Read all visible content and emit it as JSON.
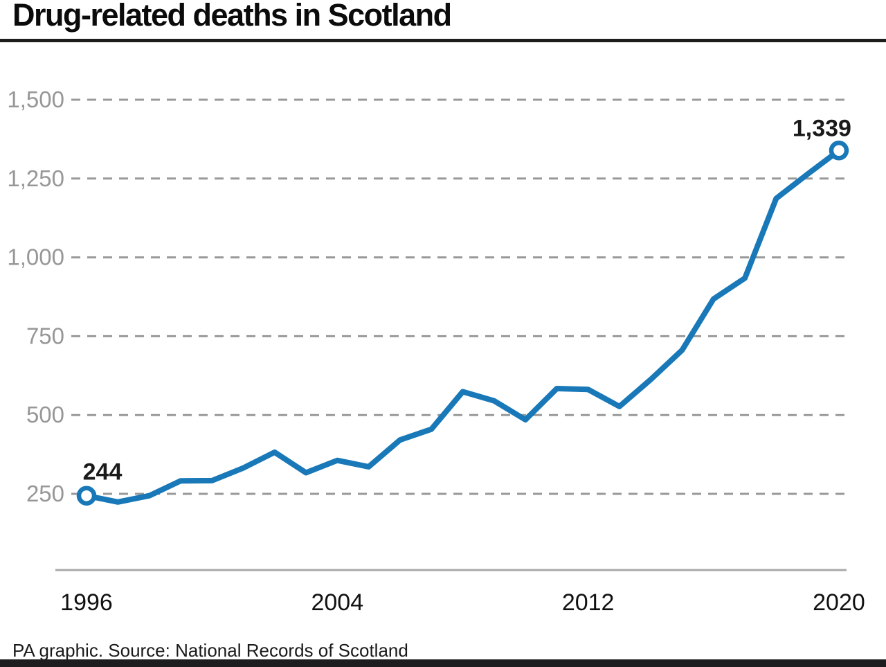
{
  "title": "Drug-related deaths in Scotland",
  "footer": "PA graphic. Source: National Records of Scotland",
  "colors": {
    "line": "#1878b8",
    "grid": "#999999",
    "axis": "#a8a8a8",
    "ytick_text": "#979797",
    "xtick_text": "#111111",
    "value_label_text": "#1a1a1a",
    "title_rule": "#1d1d1b",
    "bottom_bar": "#1d1d1f",
    "marker_fill": "#ffffff"
  },
  "chart_data": {
    "type": "line",
    "title": "Drug-related deaths in Scotland",
    "x": [
      1996,
      1997,
      1998,
      1999,
      2000,
      2001,
      2002,
      2003,
      2004,
      2005,
      2006,
      2007,
      2008,
      2009,
      2010,
      2011,
      2012,
      2013,
      2014,
      2015,
      2016,
      2017,
      2018,
      2019,
      2020
    ],
    "values": [
      244,
      224,
      244,
      291,
      292,
      332,
      382,
      317,
      356,
      336,
      421,
      455,
      574,
      545,
      485,
      584,
      581,
      527,
      613,
      706,
      868,
      934,
      1187,
      1264,
      1339
    ],
    "xlabel": "",
    "ylabel": "",
    "ylim": [
      250,
      1500
    ],
    "yticks": [
      250,
      500,
      750,
      1000,
      1250,
      1500
    ],
    "ytick_labels": [
      "250",
      "500",
      "750",
      "1,000",
      "1,250",
      "1,500"
    ],
    "xtick_years": [
      1996,
      2004,
      2012,
      2020
    ],
    "xtick_labels": [
      "1996",
      "2004",
      "2012",
      "2020"
    ],
    "first_point_label": "244",
    "last_point_label": "1,339",
    "grid": "horizontal dashed",
    "legend_position": "none",
    "annotations": [
      "first and last points marked with open circles"
    ]
  }
}
